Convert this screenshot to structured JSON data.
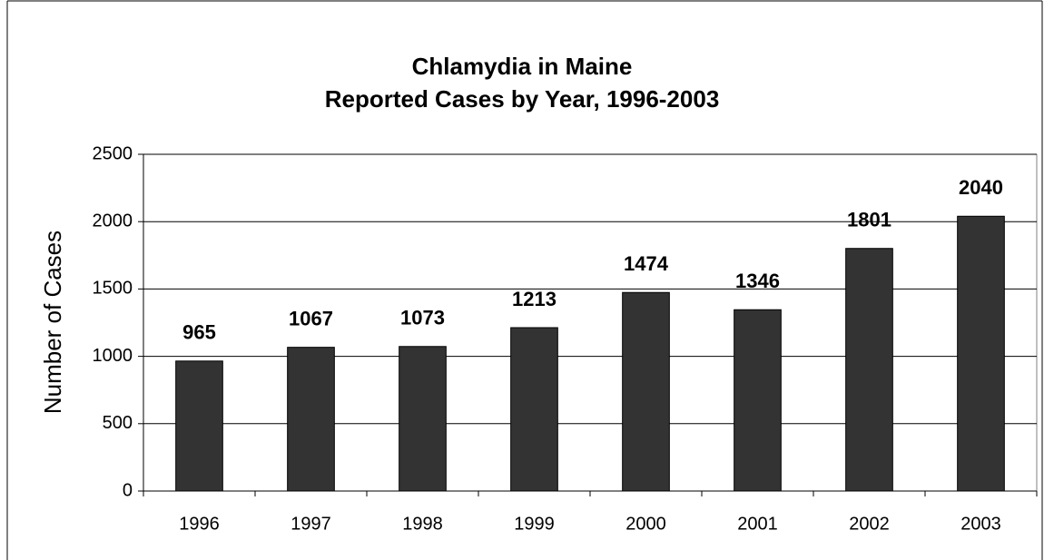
{
  "chart_data": {
    "type": "bar",
    "title": "Chlamydia in Maine",
    "subtitle": "Reported Cases by Year, 1996-2003",
    "y_label": "Number of Cases",
    "categories": [
      "1996",
      "1997",
      "1998",
      "1999",
      "2000",
      "2001",
      "2002",
      "2003"
    ],
    "values": [
      965,
      1067,
      1073,
      1213,
      1474,
      1346,
      1801,
      2040
    ],
    "color": "#333333",
    "ylim": [
      0,
      2500
    ],
    "yticks": [
      0,
      500,
      1000,
      1500,
      2000,
      2500
    ],
    "grid": true
  }
}
